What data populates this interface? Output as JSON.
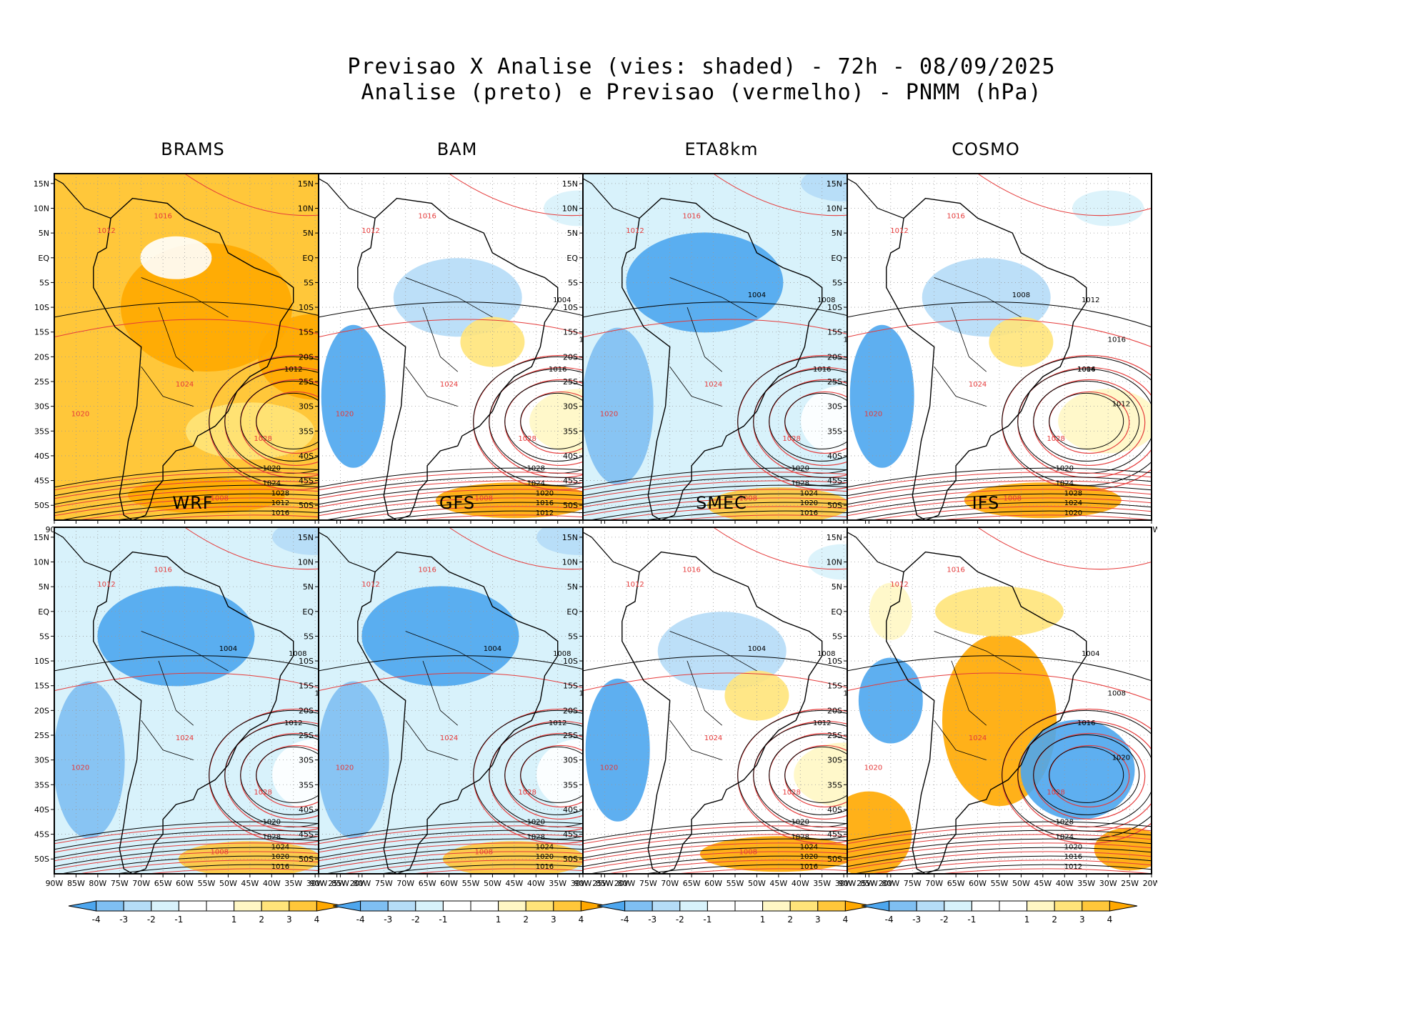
{
  "title_line1": "Previsao X Analise (vies: shaded) - 72h - 08/09/2025",
  "title_line2": "Analise (preto) e Previsao (vermelho) - PNMM (hPa)",
  "colors": {
    "neg4": "#4da6ee",
    "neg3": "#7fbff2",
    "neg2": "#b5dcf7",
    "neg1": "#d8f2fb",
    "zero": "#ffffff",
    "pos1": "#fff7c4",
    "pos2": "#ffe47a",
    "pos3": "#ffc73a",
    "pos4": "#ffa800",
    "analysis_contour": "#000000",
    "forecast_contour": "#e53a3a"
  },
  "lat_ticks": [
    "15N",
    "10N",
    "5N",
    "EQ",
    "5S",
    "10S",
    "15S",
    "20S",
    "25S",
    "30S",
    "35S",
    "40S",
    "45S",
    "50S"
  ],
  "lon_ticks": [
    "90W",
    "85W",
    "80W",
    "75W",
    "70W",
    "65W",
    "60W",
    "55W",
    "50W",
    "45W",
    "40W",
    "35W",
    "30W",
    "25W",
    "20W"
  ],
  "colorbar_labels": [
    "-4",
    "-3",
    "-2",
    "-1",
    "1",
    "2",
    "3",
    "4"
  ],
  "panels": [
    {
      "name": "BRAMS",
      "bias": "warm",
      "analysis_labels": [
        "1012",
        "1016",
        "1020",
        "1024",
        "1028",
        "1012",
        "1016"
      ],
      "forecast_labels": [
        "1012",
        "1016",
        "1020",
        "1024",
        "1028",
        "1008"
      ]
    },
    {
      "name": "BAM",
      "bias": "mixed",
      "analysis_labels": [
        "1016",
        "1020",
        "1028",
        "1024",
        "1020",
        "1016",
        "1012",
        "1008",
        "1004"
      ],
      "forecast_labels": [
        "1012",
        "1016",
        "1020",
        "1024",
        "1028",
        "1008"
      ]
    },
    {
      "name": "ETA8km",
      "bias": "cold",
      "analysis_labels": [
        "1016",
        "1012",
        "1020",
        "1028",
        "1024",
        "1020",
        "1016",
        "1012",
        "1008",
        "1004"
      ],
      "forecast_labels": [
        "1012",
        "1016",
        "1020",
        "1024",
        "1028",
        "1008"
      ]
    },
    {
      "name": "COSMO",
      "bias": "mixed",
      "analysis_labels": [
        "1016",
        "1012",
        "1020",
        "1024",
        "1028",
        "1024",
        "1020",
        "1016",
        "1012",
        "1008",
        "1004"
      ],
      "forecast_labels": [
        "1012",
        "1016",
        "1020",
        "1024",
        "1028",
        "1008"
      ]
    },
    {
      "name": "WRF",
      "bias": "cold",
      "analysis_labels": [
        "1012",
        "1016",
        "1020",
        "1028",
        "1024",
        "1020",
        "1016",
        "1012",
        "1008",
        "1004"
      ],
      "forecast_labels": [
        "1012",
        "1016",
        "1020",
        "1024",
        "1028",
        "1008"
      ]
    },
    {
      "name": "GFS",
      "bias": "cold",
      "analysis_labels": [
        "1012",
        "1016",
        "1020",
        "1028",
        "1024",
        "1020",
        "1016",
        "1012",
        "1008",
        "1004"
      ],
      "forecast_labels": [
        "1012",
        "1016",
        "1020",
        "1024",
        "1028",
        "1008"
      ]
    },
    {
      "name": "SMEC",
      "bias": "mixed",
      "analysis_labels": [
        "1012",
        "1016",
        "1020",
        "1028",
        "1024",
        "1020",
        "1016",
        "1012",
        "1008",
        "1004"
      ],
      "forecast_labels": [
        "1012",
        "1016",
        "1020",
        "1024",
        "1028",
        "1008"
      ]
    },
    {
      "name": "IFS",
      "bias": "strong",
      "analysis_labels": [
        "1016",
        "1020",
        "1028",
        "1024",
        "1020",
        "1016",
        "1012",
        "1008",
        "1004"
      ],
      "forecast_labels": [
        "1012",
        "1016",
        "1020",
        "1024",
        "1028"
      ]
    }
  ]
}
